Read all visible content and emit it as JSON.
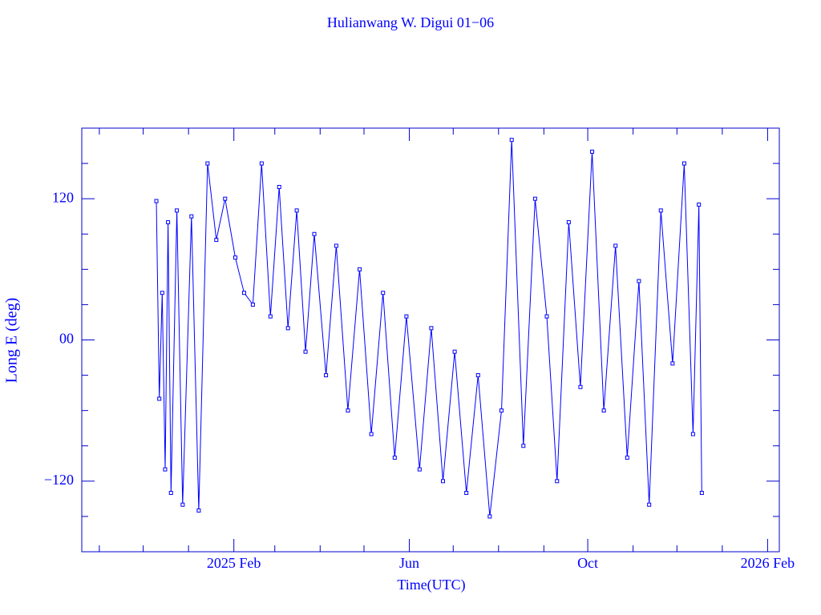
{
  "chart_data": {
    "type": "line",
    "title": "Hulianwang W. Digui 01−06",
    "x_label": "Time(UTC)",
    "y_label": "Long E (deg)",
    "xlim": [
      "2024-10-20",
      "2026-02-09"
    ],
    "xticks": [
      {
        "value": "2025-02-01",
        "label": "2025 Feb"
      },
      {
        "value": "2025-06-01",
        "label": "Jun"
      },
      {
        "value": "2025-10-01",
        "label": "Oct"
      },
      {
        "value": "2026-02-01",
        "label": "2026 Feb"
      }
    ],
    "xminor": [
      "2024-11-01",
      "2024-12-01",
      "2025-01-01",
      "2025-03-01",
      "2025-04-01",
      "2025-05-01",
      "2025-07-01",
      "2025-08-01",
      "2025-09-01",
      "2025-11-01",
      "2025-12-01",
      "2026-01-01"
    ],
    "ylim": [
      -180,
      180
    ],
    "yticks": [
      {
        "value": -120,
        "label": "−120"
      },
      {
        "value": 0,
        "label": "00"
      },
      120
    ],
    "yminor": [
      -150,
      -90,
      -60,
      -30,
      30,
      60,
      90,
      150
    ],
    "series": [
      {
        "color": "#0000ff",
        "x": [
          "2024-12-10",
          "2024-12-12",
          "2024-12-14",
          "2024-12-16",
          "2024-12-18",
          "2024-12-20",
          "2024-12-24",
          "2024-12-28",
          "2025-01-03",
          "2025-01-08",
          "2025-01-14",
          "2025-01-20",
          "2025-01-26",
          "2025-02-02",
          "2025-02-08",
          "2025-02-14",
          "2025-02-20",
          "2025-02-26",
          "2025-03-04",
          "2025-03-10",
          "2025-03-16",
          "2025-03-22",
          "2025-03-28",
          "2025-04-05",
          "2025-04-12",
          "2025-04-20",
          "2025-04-28",
          "2025-05-06",
          "2025-05-14",
          "2025-05-22",
          "2025-05-30",
          "2025-06-08",
          "2025-06-16",
          "2025-06-24",
          "2025-07-02",
          "2025-07-10",
          "2025-07-18",
          "2025-07-26",
          "2025-08-03",
          "2025-08-10",
          "2025-08-18",
          "2025-08-26",
          "2025-09-03",
          "2025-09-10",
          "2025-09-18",
          "2025-09-26",
          "2025-10-04",
          "2025-10-12",
          "2025-10-20",
          "2025-10-28",
          "2025-11-05",
          "2025-11-12",
          "2025-11-20",
          "2025-11-28",
          "2025-12-06",
          "2025-12-12",
          "2025-12-16",
          "2025-12-18"
        ],
        "values": [
          118,
          -50,
          40,
          -110,
          100,
          -130,
          110,
          -140,
          105,
          -145,
          150,
          85,
          120,
          70,
          40,
          30,
          150,
          20,
          130,
          10,
          110,
          -10,
          90,
          -30,
          80,
          -60,
          60,
          -80,
          40,
          -100,
          20,
          -110,
          10,
          -120,
          -10,
          -130,
          -30,
          -150,
          -60,
          170,
          -90,
          120,
          20,
          -120,
          100,
          -40,
          160,
          -60,
          80,
          -100,
          50,
          -140,
          110,
          -20,
          150,
          -80,
          115,
          -130
        ]
      }
    ]
  }
}
